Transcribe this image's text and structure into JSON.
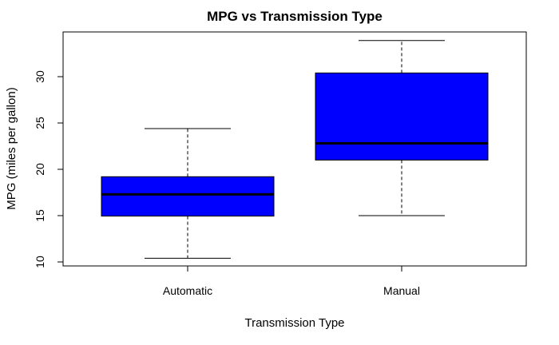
{
  "chart_data": {
    "type": "box",
    "title": "MPG vs Transmission Type",
    "xlabel": "Transmission Type",
    "ylabel": "MPG (miles per gallon)",
    "categories": [
      "Automatic",
      "Manual"
    ],
    "boxes": [
      {
        "category": "Automatic",
        "whisker_low": 10.4,
        "q1": 14.95,
        "median": 17.3,
        "q3": 19.2,
        "whisker_high": 24.4
      },
      {
        "category": "Manual",
        "whisker_low": 15.0,
        "q1": 21.0,
        "median": 22.8,
        "q3": 30.4,
        "whisker_high": 33.9
      }
    ],
    "y_ticks": [
      10,
      15,
      20,
      25,
      30
    ],
    "ylim": [
      9.4,
      34.9
    ],
    "box_color": "#0000FF",
    "grid": false
  }
}
